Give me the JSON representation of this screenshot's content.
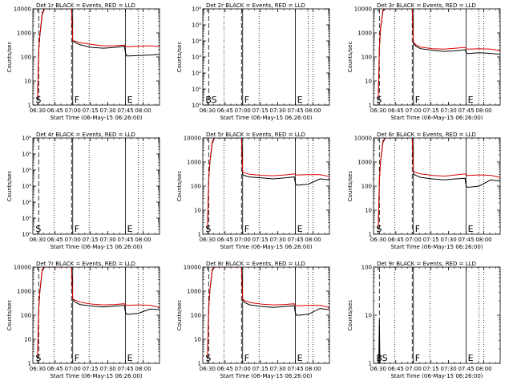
{
  "colors": {
    "events": "#000000",
    "lld": "#dd0000",
    "background": "#ffffff"
  },
  "common": {
    "xlabel": "Start Time (06-May-15 06:26:00)",
    "ylabel": "Counts/sec",
    "xticks": [
      "06:30",
      "06:45",
      "07:00",
      "07:15",
      "07:30",
      "07:45",
      "08:00"
    ],
    "xrange_minutes": [
      0,
      108
    ],
    "ylim": [
      1,
      10000
    ],
    "yscale": "log",
    "markers_minutes": {
      "S_dashed": 5,
      "F_dashed": 33,
      "F_solid": 34,
      "E_solid": 79,
      "dotted": [
        18,
        48,
        90,
        94
      ]
    }
  },
  "chart_data": [
    {
      "type": "line",
      "title": "Det 1r BLACK = Events, RED = LLD",
      "yticks": [
        "1",
        "10",
        "100",
        "1000",
        "10000"
      ],
      "labels": {
        "S": "S",
        "F": "F",
        "E": "E"
      },
      "x": [
        4,
        5,
        6,
        8,
        10,
        14,
        20,
        26,
        30,
        33,
        34,
        36,
        40,
        50,
        60,
        70,
        78,
        79,
        80,
        82,
        90,
        100,
        108
      ],
      "series": [
        {
          "name": "Events",
          "values": [
            1.5,
            170,
            800,
            6000,
            12000,
            12000,
            12000,
            12000,
            12000,
            12000,
            460,
            400,
            320,
            250,
            230,
            250,
            280,
            150,
            110,
            110,
            115,
            120,
            130
          ]
        },
        {
          "name": "LLD",
          "values": [
            2,
            180,
            900,
            7000,
            12000,
            12000,
            12000,
            12000,
            12000,
            12000,
            480,
            450,
            390,
            330,
            290,
            290,
            310,
            280,
            270,
            270,
            280,
            290,
            270
          ]
        }
      ]
    },
    {
      "type": "line",
      "title": "Det 2r BLACK = Events, RED = LLD",
      "yticks": [
        "10⁰",
        "10¹",
        "10²",
        "10³",
        "10⁴",
        "10⁵",
        "10⁶"
      ],
      "labels": {
        "S": "BS",
        "F": "F",
        "E": "E"
      },
      "x": [],
      "series": []
    },
    {
      "type": "line",
      "title": "Det 3r BLACK = Events, RED = LLD",
      "yticks": [
        "1",
        "10",
        "100",
        "1000",
        "10000"
      ],
      "labels": {
        "S": "S",
        "F": "F",
        "E": "E"
      },
      "x": [
        4,
        5,
        6,
        8,
        10,
        14,
        20,
        26,
        30,
        33,
        34,
        36,
        40,
        50,
        60,
        70,
        78,
        79,
        80,
        82,
        90,
        100,
        108
      ],
      "series": [
        {
          "name": "Events",
          "values": [
            1.5,
            220,
            1500,
            8000,
            12000,
            12000,
            12000,
            12000,
            12000,
            12000,
            380,
            280,
            220,
            190,
            170,
            180,
            200,
            150,
            140,
            140,
            150,
            140,
            130
          ]
        },
        {
          "name": "LLD",
          "values": [
            2,
            240,
            1700,
            9000,
            12000,
            12000,
            12000,
            12000,
            12000,
            12000,
            420,
            320,
            260,
            220,
            210,
            230,
            250,
            220,
            210,
            210,
            220,
            210,
            180
          ]
        }
      ]
    },
    {
      "type": "line",
      "title": "Det 4r BLACK = Events, RED = LLD",
      "yticks": [
        "10⁰",
        "10¹",
        "10²",
        "10³",
        "10⁴",
        "10⁵",
        "10⁶"
      ],
      "labels": {
        "S": "S",
        "F": "F",
        "E": "E"
      },
      "x": [],
      "series": []
    },
    {
      "type": "line",
      "title": "Det 5r BLACK = Events, RED = LLD",
      "yticks": [
        "1",
        "10",
        "100",
        "1000",
        "10000"
      ],
      "labels": {
        "S": "S",
        "F": "F",
        "E": "E"
      },
      "x": [
        4,
        5,
        6,
        8,
        10,
        14,
        20,
        26,
        30,
        33,
        34,
        36,
        40,
        50,
        60,
        70,
        78,
        79,
        80,
        82,
        90,
        100,
        108
      ],
      "series": [
        {
          "name": "Events",
          "values": [
            1.5,
            160,
            900,
            6000,
            12000,
            12000,
            12000,
            12000,
            12000,
            12000,
            300,
            270,
            240,
            220,
            200,
            220,
            240,
            130,
            110,
            110,
            120,
            200,
            180
          ]
        },
        {
          "name": "LLD",
          "values": [
            2,
            180,
            1000,
            7000,
            12000,
            12000,
            12000,
            12000,
            12000,
            12000,
            380,
            350,
            310,
            280,
            270,
            290,
            320,
            300,
            290,
            290,
            300,
            300,
            250
          ]
        }
      ]
    },
    {
      "type": "line",
      "title": "Det 6r BLACK = Events, RED = LLD",
      "yticks": [
        "1",
        "10",
        "100",
        "1000",
        "10000"
      ],
      "labels": {
        "S": "S",
        "F": "F",
        "E": "E"
      },
      "x": [
        4,
        5,
        6,
        8,
        10,
        14,
        20,
        26,
        30,
        33,
        34,
        36,
        40,
        50,
        60,
        70,
        78,
        79,
        80,
        82,
        90,
        100,
        108
      ],
      "series": [
        {
          "name": "Events",
          "values": [
            1.5,
            170,
            1000,
            6500,
            12000,
            12000,
            12000,
            12000,
            12000,
            12000,
            320,
            280,
            230,
            200,
            180,
            200,
            210,
            100,
            90,
            90,
            100,
            180,
            160
          ]
        },
        {
          "name": "LLD",
          "values": [
            2,
            190,
            1100,
            7500,
            12000,
            12000,
            12000,
            12000,
            12000,
            12000,
            400,
            370,
            320,
            280,
            260,
            290,
            320,
            290,
            280,
            280,
            290,
            280,
            230
          ]
        }
      ]
    },
    {
      "type": "line",
      "title": "Det 7r BLACK = Events, RED = LLD",
      "yticks": [
        "1",
        "10",
        "100",
        "1000",
        "10000"
      ],
      "labels": {
        "S": "S",
        "F": "F",
        "E": "E"
      },
      "x": [
        4,
        5,
        6,
        8,
        10,
        14,
        20,
        26,
        30,
        33,
        34,
        36,
        40,
        50,
        60,
        70,
        78,
        79,
        80,
        82,
        90,
        100,
        108
      ],
      "series": [
        {
          "name": "Events",
          "values": [
            1.5,
            170,
            1000,
            7000,
            12000,
            12000,
            12000,
            12000,
            12000,
            12000,
            450,
            350,
            280,
            240,
            220,
            240,
            260,
            130,
            110,
            110,
            120,
            180,
            170
          ]
        },
        {
          "name": "LLD",
          "values": [
            2,
            190,
            1100,
            8000,
            12000,
            12000,
            12000,
            12000,
            12000,
            12000,
            480,
            420,
            350,
            290,
            270,
            280,
            300,
            270,
            260,
            260,
            270,
            260,
            210
          ]
        }
      ]
    },
    {
      "type": "line",
      "title": "Det 8r BLACK = Events, RED = LLD",
      "yticks": [
        "1",
        "10",
        "100",
        "1000",
        "10000"
      ],
      "labels": {
        "S": "S",
        "F": "F",
        "E": "E"
      },
      "x": [
        4,
        5,
        6,
        8,
        10,
        14,
        20,
        26,
        30,
        33,
        34,
        36,
        40,
        50,
        60,
        70,
        78,
        79,
        80,
        82,
        90,
        100,
        108
      ],
      "series": [
        {
          "name": "Events",
          "values": [
            1.5,
            170,
            1000,
            7000,
            12000,
            12000,
            12000,
            12000,
            12000,
            12000,
            420,
            330,
            270,
            230,
            210,
            230,
            250,
            120,
            100,
            100,
            110,
            190,
            170
          ]
        },
        {
          "name": "LLD",
          "values": [
            2,
            190,
            1100,
            8000,
            12000,
            12000,
            12000,
            12000,
            12000,
            12000,
            460,
            400,
            340,
            290,
            270,
            280,
            300,
            260,
            250,
            250,
            260,
            260,
            210
          ]
        }
      ]
    },
    {
      "type": "line",
      "title": "Det 9r BLACK = Events, RED = LLD",
      "yticks": [
        "1",
        "10",
        "100"
      ],
      "labels": {
        "S": "BS",
        "F": "F",
        "E": "E"
      },
      "x": [
        4,
        4.5,
        5,
        5.5,
        6
      ],
      "series": [
        {
          "name": "Events",
          "values": [
            1,
            1,
            8,
            1,
            1
          ]
        }
      ]
    }
  ]
}
